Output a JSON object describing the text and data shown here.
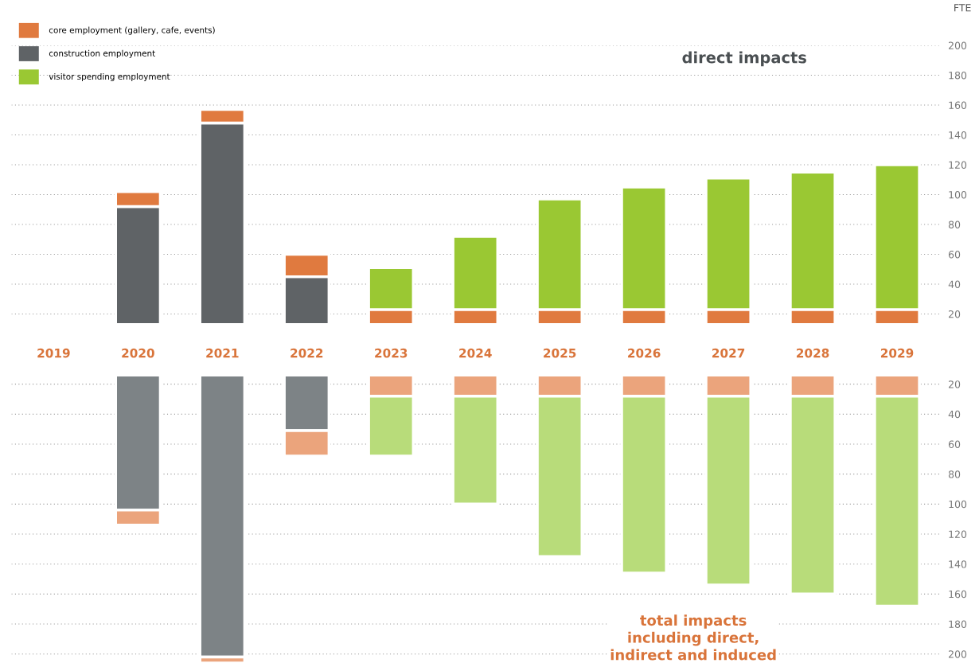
{
  "chart_data": [
    {
      "type": "bar",
      "title": "direct impacts",
      "ylabel": "FTE",
      "legend": "top left",
      "grid": "y",
      "categories": [
        "2019",
        "2020",
        "2021",
        "2022",
        "2023",
        "2024",
        "2025",
        "2026",
        "2027",
        "2028",
        "2029"
      ],
      "series": [
        {
          "name": "construction employment",
          "color": "#5f6366",
          "values": [
            null,
            79,
            135,
            32,
            null,
            null,
            null,
            null,
            null,
            null,
            null
          ],
          "base": [
            null,
            13,
            13,
            13,
            null,
            null,
            null,
            null,
            null,
            null,
            null
          ]
        },
        {
          "name": "core employment (gallery, cafe, events)",
          "color": "#e07a3f",
          "values": [
            null,
            10,
            9,
            15,
            10,
            10,
            10,
            10,
            10,
            10,
            10
          ],
          "base": [
            null,
            92,
            148,
            45,
            13,
            13,
            13,
            13,
            13,
            13,
            13
          ]
        },
        {
          "name": "visitor spending employment",
          "color": "#9ac833",
          "values": [
            null,
            null,
            null,
            null,
            28,
            49,
            74,
            82,
            88,
            92,
            97
          ],
          "base": [
            null,
            null,
            null,
            null,
            23,
            23,
            23,
            23,
            23,
            23,
            23
          ]
        }
      ],
      "ylim": [
        0,
        200
      ],
      "yticks": [
        20,
        40,
        60,
        80,
        100,
        120,
        140,
        160,
        180,
        200
      ]
    },
    {
      "type": "bar",
      "title": "total impacts\nincluding direct,\nindirect and induced",
      "grid": "y",
      "tick_labels": "y",
      "categories": [
        "2019",
        "2020",
        "2021",
        "2022",
        "2023",
        "2024",
        "2025",
        "2026",
        "2027",
        "2028",
        "2029"
      ],
      "series": [
        {
          "color": "#7d8386",
          "values": [
            null,
            90,
            188,
            37,
            null,
            null,
            null,
            null,
            null,
            null,
            null
          ],
          "base": [
            null,
            14,
            14,
            14,
            null,
            null,
            null,
            null,
            null,
            null,
            null
          ]
        },
        {
          "color": "#eba47c",
          "values": [
            null,
            10,
            4,
            17,
            14,
            14,
            14,
            14,
            14,
            14,
            14
          ],
          "base": [
            null,
            104,
            202,
            51,
            14,
            14,
            14,
            14,
            14,
            14,
            14
          ]
        },
        {
          "color": "#b8dc7a",
          "values": [
            null,
            null,
            null,
            null,
            40,
            72,
            107,
            118,
            126,
            132,
            140
          ],
          "base": [
            null,
            null,
            null,
            null,
            28,
            28,
            28,
            28,
            28,
            28,
            28
          ]
        }
      ],
      "ylim": [
        206,
        0
      ],
      "yticks": [
        20,
        40,
        60,
        80,
        100,
        120,
        140,
        160,
        180,
        200
      ]
    }
  ]
}
